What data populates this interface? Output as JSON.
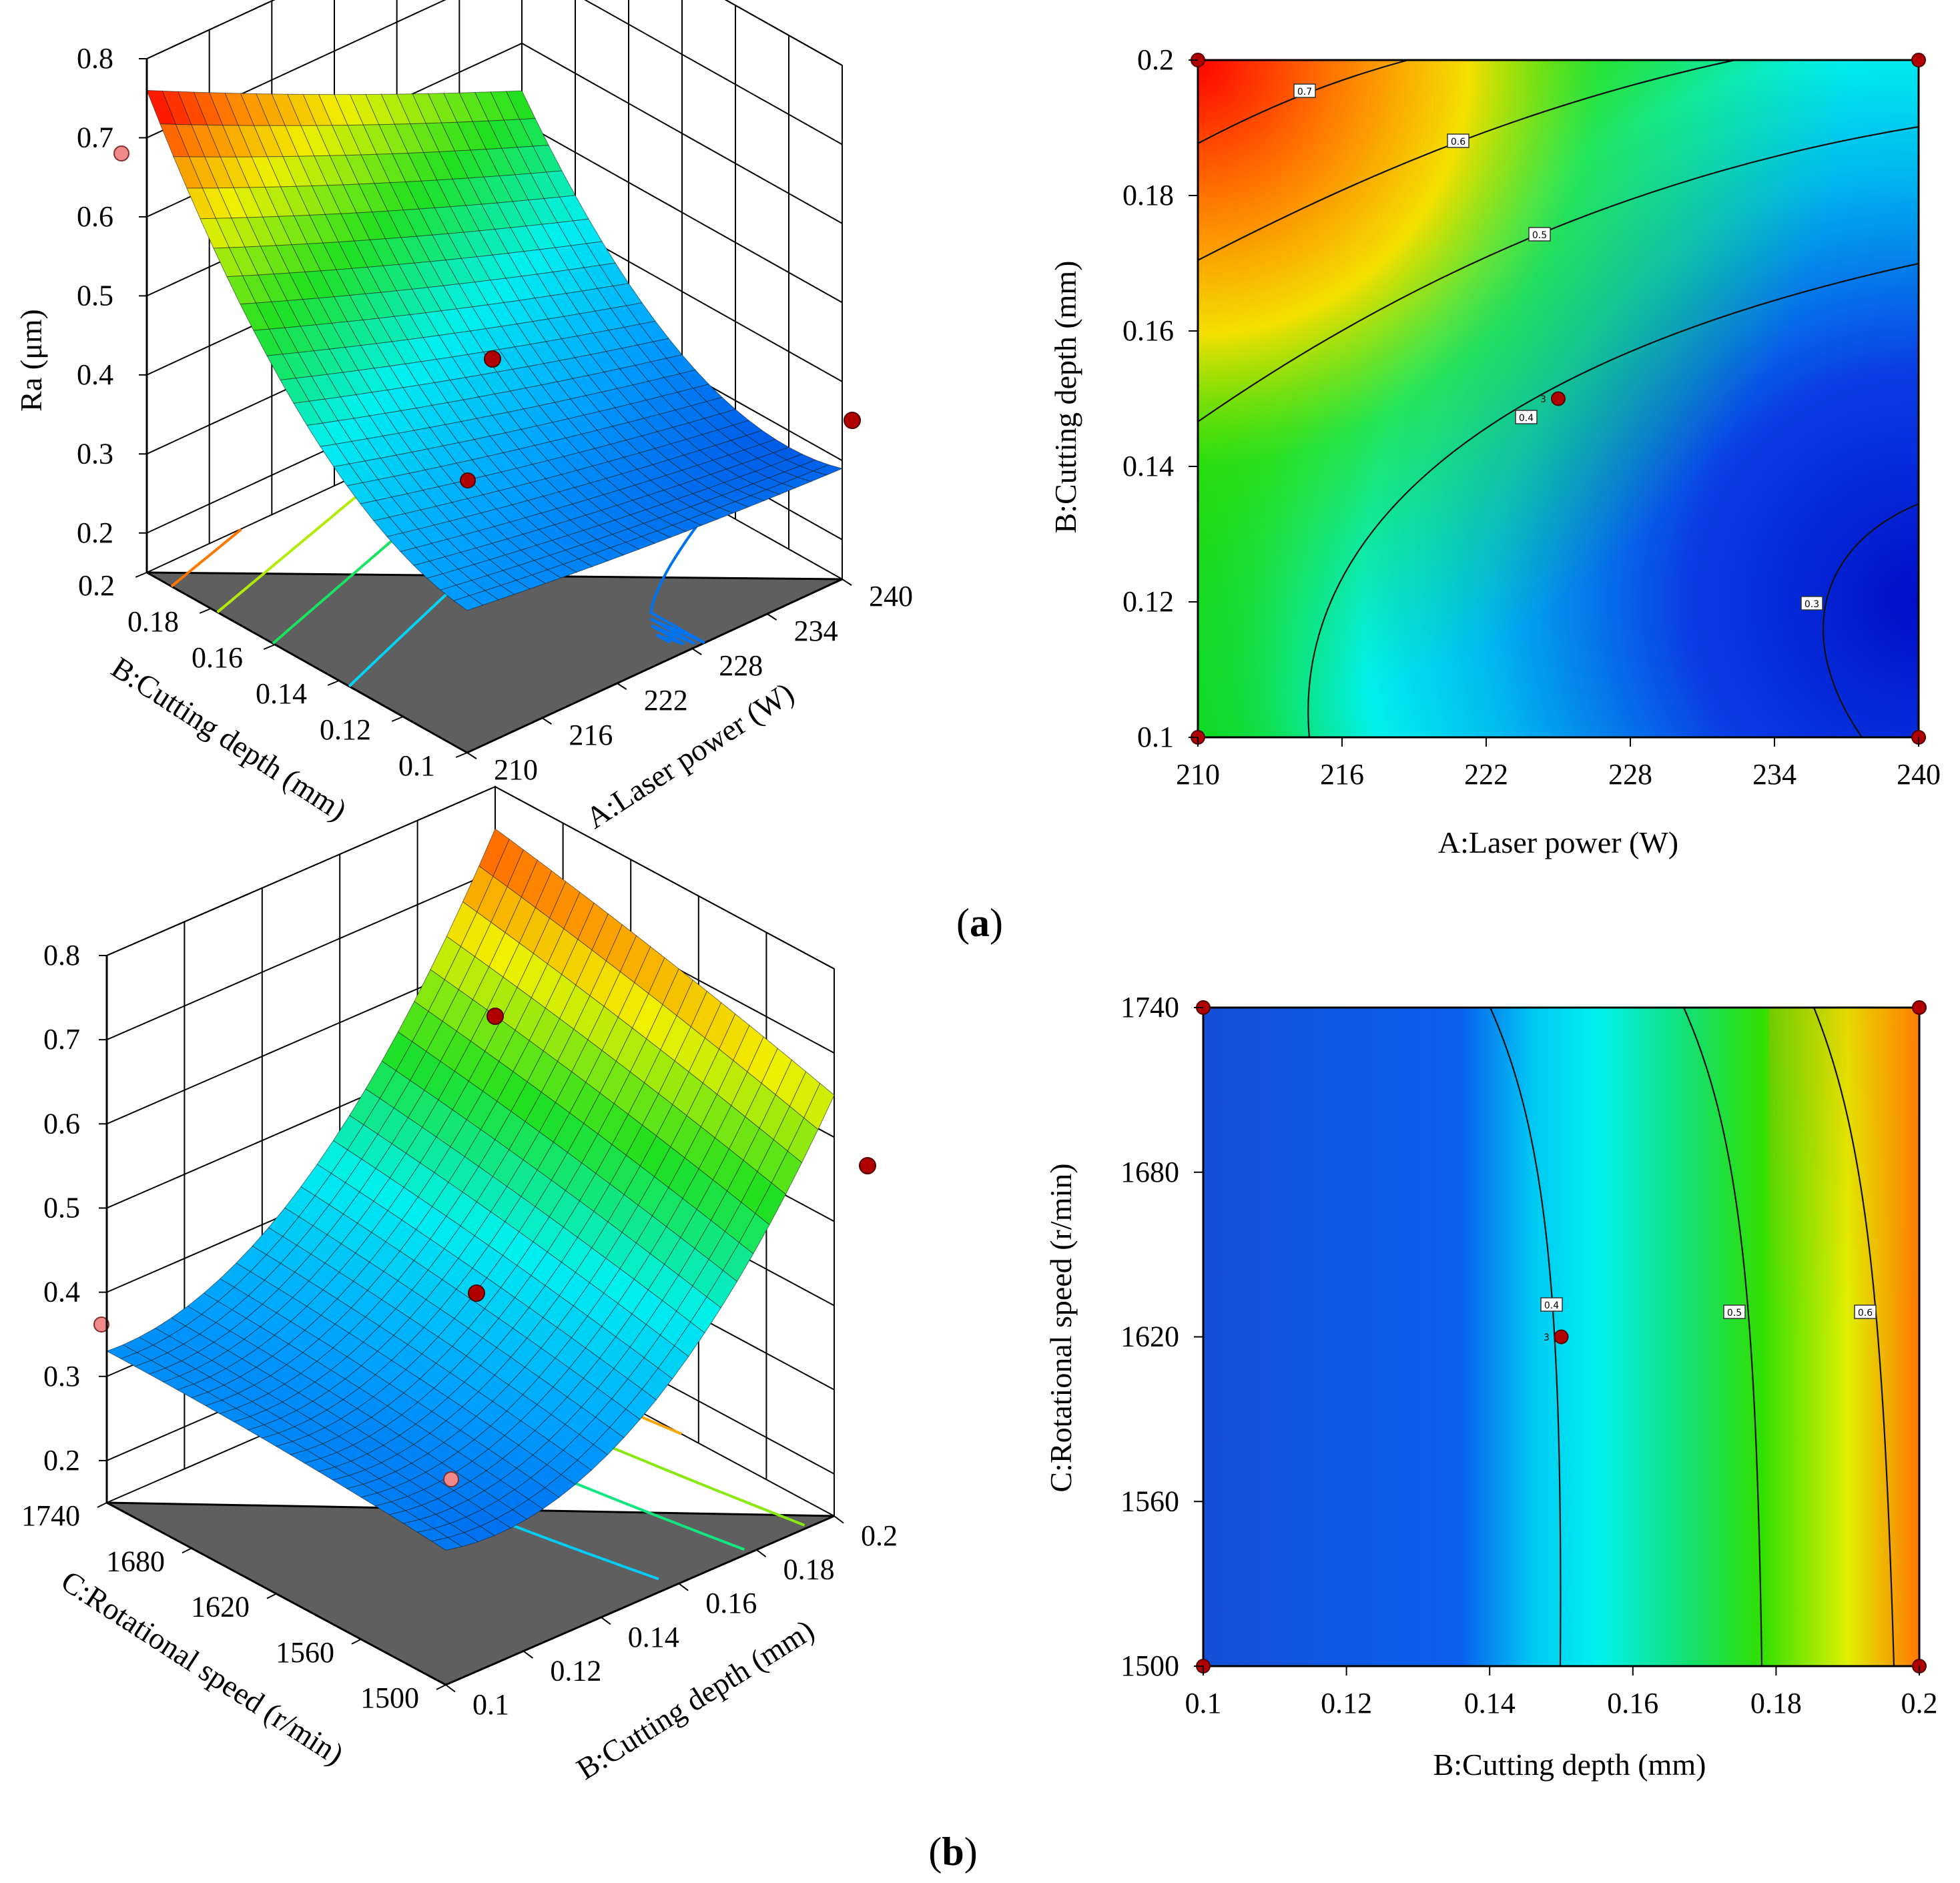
{
  "colors": {
    "floor": "#5f5f5f",
    "point_dark": "#b00000",
    "point_light": "#f08a8a",
    "contour": "#111111"
  },
  "chart_data": [
    {
      "type": "surface",
      "panel": "a",
      "zlabel": "Ra (μm)",
      "xlabel": "A:Laser power (W)",
      "ylabel": "B:Cutting depth (mm)",
      "x_ticks": [
        "210",
        "216",
        "222",
        "228",
        "234",
        "240"
      ],
      "y_ticks": [
        "0.1",
        "0.12",
        "0.14",
        "0.16",
        "0.18",
        "0.2"
      ],
      "z_ticks": [
        "0.2",
        "0.3",
        "0.4",
        "0.5",
        "0.6",
        "0.7",
        "0.8"
      ],
      "xlim": [
        210,
        240
      ],
      "ylim": [
        0.1,
        0.2
      ],
      "zlim": [
        0.15,
        0.8
      ],
      "corner_values": {
        "x_low_y_low": 0.33,
        "x_high_y_low": 0.3,
        "x_low_y_high": 0.75,
        "x_high_y_high": 0.5
      }
    },
    {
      "type": "contour",
      "panel": "a",
      "xlabel": "A:Laser power (W)",
      "ylabel": "B:Cutting depth (mm)",
      "x_ticks": [
        "210",
        "216",
        "222",
        "228",
        "234",
        "240"
      ],
      "y_ticks": [
        "0.1",
        "0.12",
        "0.14",
        "0.16",
        "0.18",
        "0.2"
      ],
      "xlim": [
        210,
        240
      ],
      "ylim": [
        0.1,
        0.2
      ],
      "contour_labels": [
        "0.7",
        "0.6",
        "0.5",
        "0.4",
        "0.3"
      ],
      "center_point_label": "3",
      "design_points": [
        [
          210,
          0.1
        ],
        [
          240,
          0.1
        ],
        [
          210,
          0.2
        ],
        [
          240,
          0.2
        ],
        [
          225,
          0.15
        ]
      ]
    },
    {
      "type": "surface",
      "panel": "b",
      "zlabel": "",
      "xlabel": "B:Cutting depth (mm)",
      "ylabel": "C:Rotational speed (r/min)",
      "x_ticks": [
        "0.1",
        "0.12",
        "0.14",
        "0.16",
        "0.18",
        "0.2"
      ],
      "y_ticks": [
        "1500",
        "1560",
        "1620",
        "1680",
        "1740"
      ],
      "z_ticks": [
        "0.2",
        "0.3",
        "0.4",
        "0.5",
        "0.6",
        "0.7",
        "0.8"
      ],
      "xlim": [
        0.1,
        0.2
      ],
      "ylim": [
        1500,
        1740
      ],
      "zlim": [
        0.15,
        0.8
      ]
    },
    {
      "type": "contour",
      "panel": "b",
      "xlabel": "B:Cutting depth (mm)",
      "ylabel": "C:Rotational speed (r/min)",
      "x_ticks": [
        "0.1",
        "0.12",
        "0.14",
        "0.16",
        "0.18",
        "0.2"
      ],
      "y_ticks": [
        "1500",
        "1560",
        "1620",
        "1680",
        "1740"
      ],
      "xlim": [
        0.1,
        0.2
      ],
      "ylim": [
        1500,
        1740
      ],
      "contour_labels": [
        "0.4",
        "0.5",
        "0.6"
      ],
      "center_point_label": "3",
      "design_points": [
        [
          0.1,
          1500
        ],
        [
          0.2,
          1500
        ],
        [
          0.1,
          1740
        ],
        [
          0.2,
          1740
        ],
        [
          0.15,
          1620
        ]
      ]
    }
  ],
  "panel_labels": {
    "a": "a",
    "b": "b",
    "open": "(",
    "close": ")"
  }
}
